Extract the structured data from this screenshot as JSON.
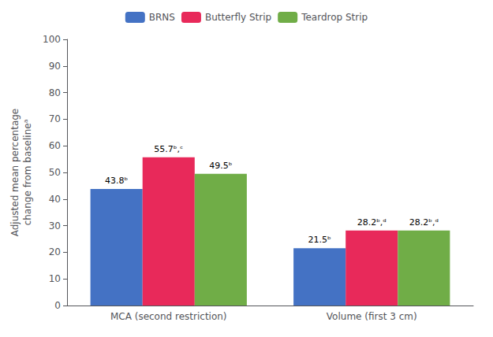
{
  "chart_data": {
    "type": "bar",
    "categories": [
      "MCA (second restriction)",
      "Volume (first 3 cm)"
    ],
    "series": [
      {
        "name": "BRNS",
        "color": "#4472C4",
        "values": [
          43.8,
          21.5
        ],
        "value_labels": [
          "43.8ᵇ",
          "21.5ᵇ"
        ]
      },
      {
        "name": "Butterfly Strip",
        "color": "#E8295A",
        "values": [
          55.7,
          28.2
        ],
        "value_labels": [
          "55.7ᵇ,ᶜ",
          "28.2ᵇ,ᵈ"
        ]
      },
      {
        "name": "Teardrop Strip",
        "color": "#70AD47",
        "values": [
          49.5,
          28.2
        ],
        "value_labels": [
          "49.5ᵇ",
          "28.2ᵇ,ᵈ"
        ]
      }
    ],
    "ylabel": "Adjusted mean percentage\nchange from baselineᵃ",
    "ylim": [
      0,
      100
    ],
    "yticks": [
      0,
      10,
      20,
      30,
      40,
      50,
      60,
      70,
      80,
      90,
      100
    ],
    "grid": false,
    "legend": "top",
    "data_labels": true
  }
}
